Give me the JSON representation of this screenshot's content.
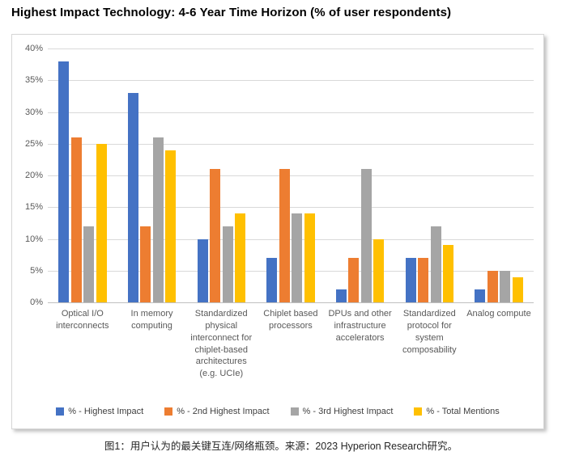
{
  "title": "Highest Impact Technology: 4-6 Year Time Horizon (% of user respondents)",
  "caption": "图1：用户认为的最关键互连/网络瓶颈。来源：2023 Hyperion Research研究。",
  "chart_data": {
    "type": "bar",
    "title": "Highest Impact Technology: 4-6 Year Time Horizon (% of user respondents)",
    "categories": [
      "Optical I/O interconnects",
      "In memory computing",
      "Standardized physical interconnect for chiplet-based architectures (e.g. UCIe)",
      "Chiplet based processors",
      "DPUs and other infrastructure accelerators",
      "Standardized protocol for system composability",
      "Analog compute"
    ],
    "series": [
      {
        "name": "% - Highest Impact",
        "color": "#4472C4",
        "values": [
          38,
          33,
          10,
          7,
          2,
          7,
          2
        ]
      },
      {
        "name": "% - 2nd Highest Impact",
        "color": "#ED7D31",
        "values": [
          26,
          12,
          21,
          21,
          7,
          7,
          5
        ]
      },
      {
        "name": "% - 3rd Highest Impact",
        "color": "#A5A5A5",
        "values": [
          12,
          26,
          12,
          14,
          21,
          12,
          5
        ]
      },
      {
        "name": "% - Total Mentions",
        "color": "#FFC000",
        "values": [
          25,
          24,
          14,
          14,
          10,
          9,
          4
        ]
      }
    ],
    "xlabel": "",
    "ylabel": "",
    "ylim": [
      0,
      40
    ],
    "ytick_step": 5,
    "ytick_labels": [
      "0%",
      "5%",
      "10%",
      "15%",
      "20%",
      "25%",
      "30%",
      "35%",
      "40%"
    ],
    "grid": true,
    "legend_position": "bottom",
    "gridline_color": "#D9D9D9",
    "axis_text_color": "#595959"
  }
}
